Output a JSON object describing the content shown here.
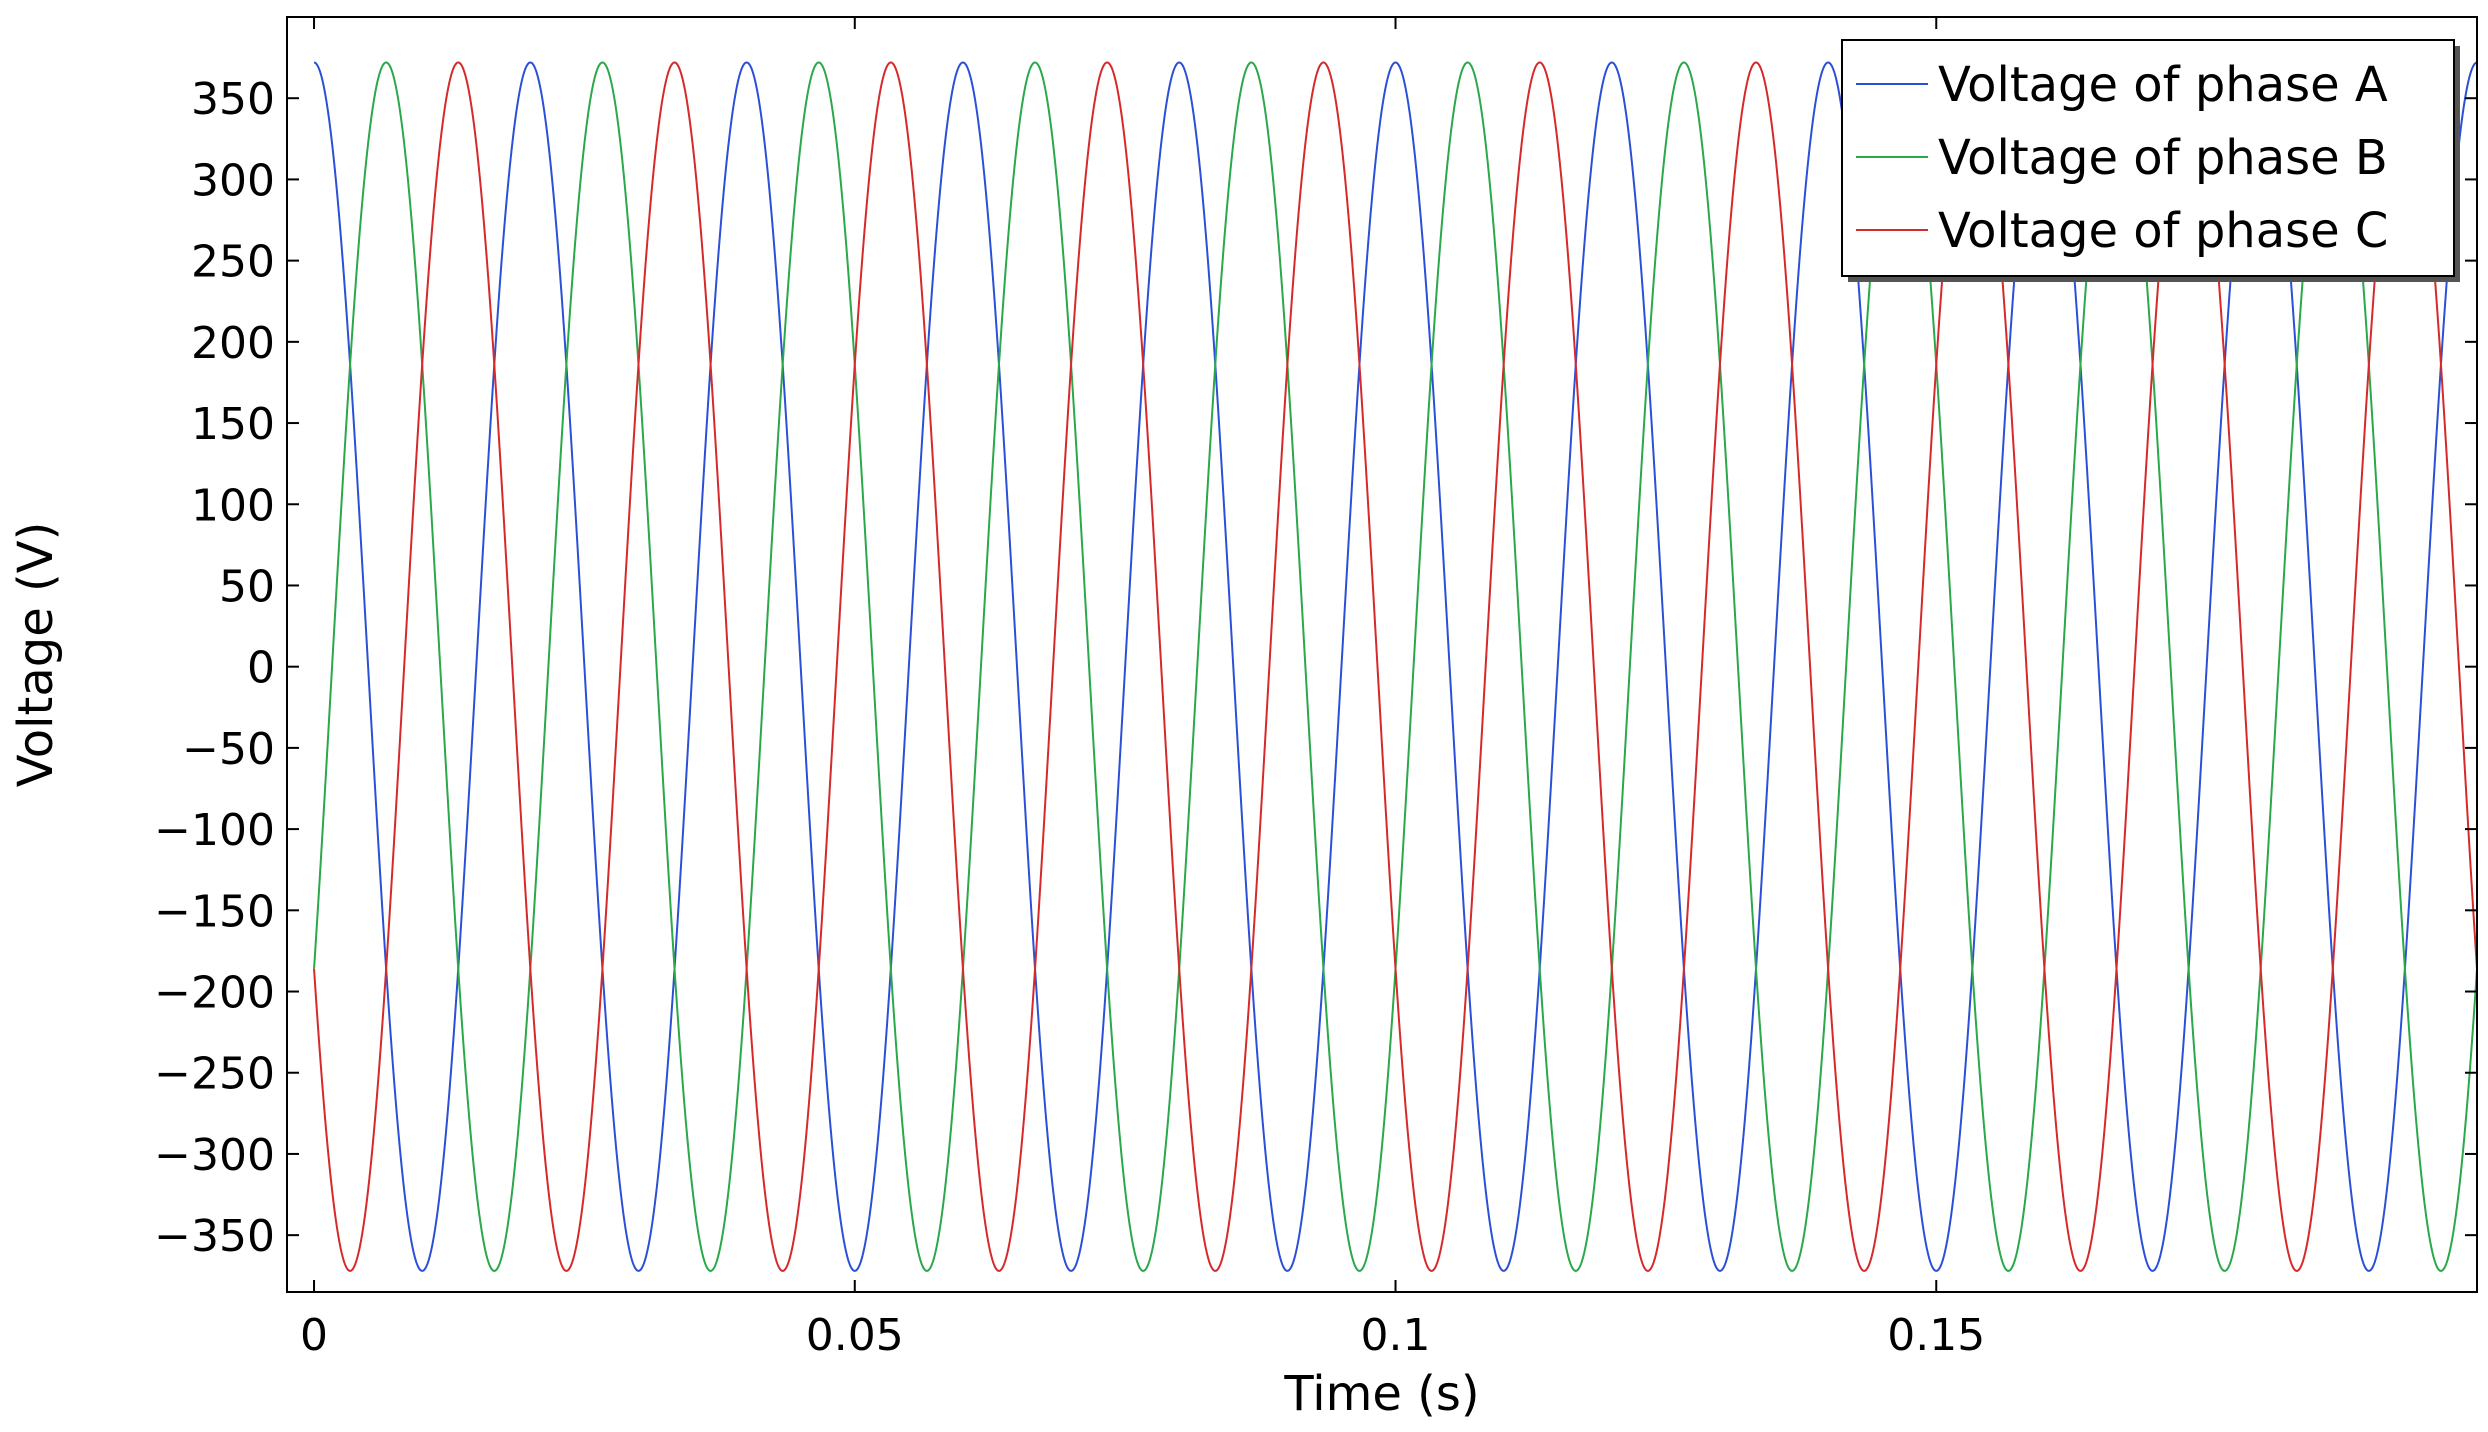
{
  "chart_data": {
    "type": "line",
    "title": "",
    "xlabel": "Time (s)",
    "ylabel": "Voltage (V)",
    "xlim": [
      -0.0025,
      0.2
    ],
    "ylim": [
      -385,
      400
    ],
    "x_ticks": [
      0,
      0.05,
      0.1,
      0.15
    ],
    "x_tick_labels": [
      "0",
      "0.05",
      "0.1",
      "0.15"
    ],
    "y_ticks": [
      350,
      300,
      250,
      200,
      150,
      100,
      50,
      0,
      -50,
      -100,
      -150,
      -200,
      -250,
      -300,
      -350
    ],
    "y_tick_labels": [
      "350",
      "300",
      "250",
      "200",
      "150",
      "100",
      "50",
      "0",
      "−50",
      "−100",
      "−150",
      "−200",
      "−250",
      "−300",
      "−350"
    ],
    "grid": false,
    "legend_position": "top-right",
    "series": [
      {
        "name": "Voltage of phase A",
        "color": "#2b50d8",
        "function": "sine",
        "amplitude": 372,
        "frequency_hz": 50,
        "phase_deg": 90,
        "x_start": 0,
        "x_end": 0.2
      },
      {
        "name": "Voltage of phase B",
        "color": "#2aa84a",
        "function": "sine",
        "amplitude": 372,
        "frequency_hz": 50,
        "phase_deg": -30,
        "x_start": 0,
        "x_end": 0.2
      },
      {
        "name": "Voltage of phase C",
        "color": "#d62a2a",
        "function": "sine",
        "amplitude": 372,
        "frequency_hz": 50,
        "phase_deg": 210,
        "x_start": 0,
        "x_end": 0.2
      }
    ]
  }
}
